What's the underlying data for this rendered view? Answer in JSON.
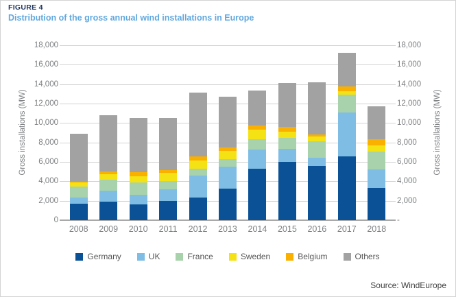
{
  "figure": {
    "label": "FIGURE 4",
    "title": "Distribution of the gross annual wind installations in Europe",
    "source": "Source: WindEurope"
  },
  "axes": {
    "left_title": "Gross installations (MW)",
    "right_title": "Gross installations (MW)",
    "left_ticks": [
      "18,000",
      "16,000",
      "14,000",
      "12,000",
      "10,000",
      "8,000",
      "6,000",
      "4,000",
      "2,000",
      "0"
    ],
    "right_ticks": [
      "18,000",
      "16,000",
      "14,000",
      "12,000",
      "10,000",
      "8,000",
      "6,000",
      "4,000",
      "2,000",
      "-"
    ]
  },
  "colors": {
    "figure_label": "#1f355e",
    "figure_title": "#61a8de",
    "axis_text": "#7e8083",
    "gridline": "#d2d2d2",
    "axis_line": "#a9a9a9",
    "legend_text": "#565656",
    "source_text": "#3f3f3f"
  },
  "chart_data": {
    "type": "bar",
    "stacked": true,
    "title": "Distribution of the gross annual wind installations in Europe",
    "xlabel": "",
    "ylabel": "Gross installations (MW)",
    "ylim": [
      0,
      18000
    ],
    "ytick_step": 2000,
    "grid": true,
    "legend_position": "bottom",
    "categories": [
      "2008",
      "2009",
      "2010",
      "2011",
      "2012",
      "2013",
      "2014",
      "2015",
      "2016",
      "2017",
      "2018"
    ],
    "series": [
      {
        "name": "Germany",
        "color": "#0b5196",
        "values": [
          1700,
          1900,
          1600,
          2000,
          2350,
          3250,
          5300,
          6000,
          5550,
          6550,
          3300
        ]
      },
      {
        "name": "UK",
        "color": "#7fbde5",
        "values": [
          650,
          1150,
          1000,
          1150,
          2250,
          2250,
          1950,
          1350,
          900,
          4500,
          1950
        ]
      },
      {
        "name": "France",
        "color": "#a8d2ab",
        "values": [
          1100,
          1100,
          1300,
          850,
          700,
          800,
          1100,
          1100,
          1650,
          1850,
          1800
        ]
      },
      {
        "name": "Sweden",
        "color": "#f4e214",
        "values": [
          400,
          550,
          650,
          900,
          850,
          850,
          950,
          650,
          500,
          400,
          650
        ]
      },
      {
        "name": "Belgium",
        "color": "#f9b000",
        "values": [
          100,
          300,
          400,
          250,
          450,
          300,
          450,
          500,
          250,
          450,
          600
        ]
      },
      {
        "name": "Others",
        "color": "#a2a2a2",
        "values": [
          4950,
          5800,
          5550,
          5350,
          6500,
          5250,
          3600,
          4500,
          5350,
          3500,
          3450
        ]
      }
    ],
    "totals": [
      8900,
      10800,
      10500,
      10500,
      13100,
      12700,
      13350,
      14100,
      14200,
      17250,
      11750
    ]
  }
}
